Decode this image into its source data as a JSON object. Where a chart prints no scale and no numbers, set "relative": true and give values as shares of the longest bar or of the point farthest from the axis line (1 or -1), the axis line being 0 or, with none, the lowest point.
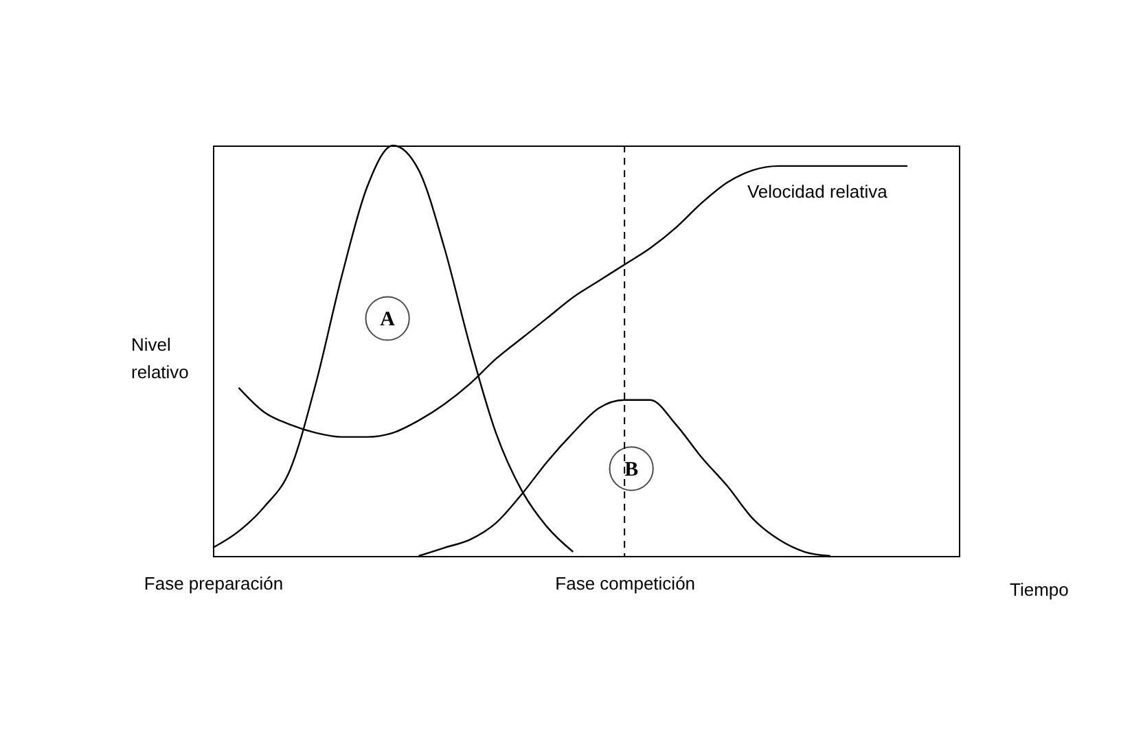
{
  "chart_data": {
    "type": "line",
    "relative": true,
    "ylabel": "Nivel relativo",
    "annotations": [
      "Tiempo"
    ],
    "categories": [
      "Fase preparación",
      null,
      null,
      null,
      null,
      null,
      null,
      null,
      null,
      null,
      null,
      null,
      null,
      null,
      null,
      null,
      "Fase competición",
      null,
      null,
      null,
      null,
      null,
      null,
      null,
      null,
      null,
      null,
      null
    ],
    "series": [
      {
        "name": "A",
        "color": "#000000",
        "values": [
          0.02,
          0.06,
          0.12,
          0.21,
          0.42,
          0.68,
          0.9,
          1,
          0.94,
          0.75,
          0.51,
          0.3,
          0.16,
          0.07,
          0.01,
          null,
          null,
          null,
          null,
          null,
          null,
          null,
          null,
          null,
          null,
          null,
          null,
          null
        ]
      },
      {
        "name": "Velocidad relativa",
        "color": "#000000",
        "values": [
          null,
          0.41,
          0.35,
          0.32,
          0.3,
          0.29,
          0.29,
          0.3,
          0.33,
          0.37,
          0.42,
          0.48,
          0.53,
          0.58,
          0.63,
          0.67,
          0.71,
          0.75,
          0.8,
          0.86,
          0.91,
          0.94,
          0.95,
          0.95,
          0.95,
          0.95,
          0.95,
          0.95
        ]
      },
      {
        "name": "B",
        "color": "#000000",
        "values": [
          null,
          null,
          null,
          null,
          null,
          null,
          null,
          null,
          0,
          0.02,
          0.04,
          0.08,
          0.15,
          0.23,
          0.3,
          0.36,
          0.38,
          0.38,
          0.32,
          0.24,
          0.17,
          0.09,
          0.04,
          0.01,
          0,
          null,
          null,
          null
        ]
      }
    ],
    "ref_lines": [
      {
        "axis": "x",
        "value": "Fase competición",
        "color": "#000000",
        "line_style": "dashed"
      }
    ],
    "grid": false,
    "legend": false,
    "marker": "none",
    "line_style": "solid"
  }
}
